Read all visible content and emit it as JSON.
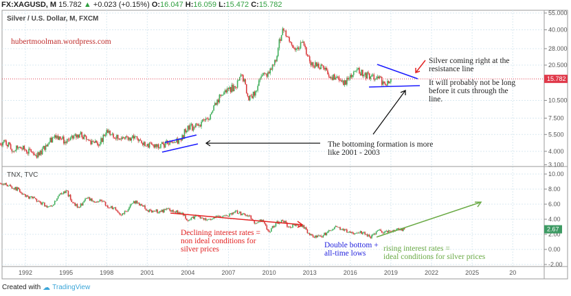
{
  "header": {
    "symbol": "FX:XAGUSD, M",
    "last": "15.782",
    "change": "+0.023 (+0.15%)",
    "o_label": "O:",
    "o": "16.047",
    "h_label": "H:",
    "h": "16.059",
    "l_label": "L:",
    "l": "15.472",
    "c_label": "C:",
    "c": "15.782"
  },
  "footer": {
    "created_with": "Created with",
    "brand": "TradingView"
  },
  "colors": {
    "up": "#3fae5a",
    "down": "#d9393b",
    "price_label": "#e0394a",
    "tnx_label": "#3d9a63",
    "annotation_blue": "#1a1aff",
    "annotation_red": "#e32222",
    "annotation_green": "#6aaa45"
  },
  "chart_data": [
    {
      "type": "candlestick",
      "title": "Silver / U.S. Dollar, M, FXCM",
      "scale": "log",
      "y_ticks": [
        "55.000",
        "40.000",
        "28.000",
        "20.500",
        "10.500",
        "7.500",
        "5.500",
        "4.000",
        "3.100"
      ],
      "y_tick_values": [
        55,
        40,
        28,
        20.5,
        10.5,
        7.5,
        5.5,
        4,
        3.1
      ],
      "last_price_label": "15.782",
      "last_price": 15.782,
      "x_start": 1990,
      "x_step": 0.5,
      "closes": [
        4.6,
        4.9,
        4.0,
        4.3,
        4.1,
        3.9,
        3.7,
        4.5,
        5.2,
        5.3,
        4.7,
        5.1,
        5.5,
        5.0,
        4.8,
        4.6,
        6.0,
        5.2,
        5.1,
        5.3,
        5.1,
        4.9,
        4.6,
        4.3,
        4.6,
        4.6,
        4.7,
        4.9,
        6.5,
        6.3,
        7.0,
        7.3,
        10.0,
        11.5,
        13.0,
        13.5,
        17.0,
        10.5,
        12.5,
        17.0,
        17.5,
        22.0,
        41.0,
        32.0,
        28.0,
        32.0,
        22.0,
        20.0,
        19.5,
        16.0,
        16.5,
        14.0,
        17.0,
        19.0,
        17.0,
        16.5,
        16.5,
        14.5,
        15.782
      ],
      "watermark": "hubertmoolman.wordpress.com",
      "annotations": {
        "resistance": [
          "Silver coming right at the",
          "resistance line"
        ],
        "cut": [
          "It will probably not be long",
          "before it cuts through the",
          "line."
        ],
        "bottoming": [
          "The bottoming formation is more",
          "like 2001 - 2003"
        ]
      }
    },
    {
      "type": "candlestick",
      "title": "TNX, TVC",
      "scale": "linear",
      "y_ticks": [
        "10.00",
        "8.00",
        "6.00",
        "4.00",
        "2.00",
        "0.00",
        "-2.00"
      ],
      "y_tick_values": [
        10,
        8,
        6,
        4,
        2,
        0,
        -2
      ],
      "last_price_label": "2.67",
      "last_price": 2.67,
      "x_start": 1990,
      "x_step": 0.5,
      "closes": [
        8.7,
        8.8,
        8.1,
        8.0,
        7.0,
        6.8,
        6.4,
        5.8,
        5.8,
        7.3,
        7.8,
        6.2,
        5.6,
        6.8,
        6.4,
        6.6,
        5.8,
        5.5,
        4.6,
        5.0,
        6.4,
        6.0,
        5.2,
        5.1,
        5.0,
        5.4,
        5.0,
        4.8,
        3.8,
        4.4,
        4.2,
        4.0,
        4.2,
        4.3,
        4.4,
        5.1,
        4.7,
        4.5,
        3.5,
        3.9,
        2.3,
        3.5,
        3.8,
        3.0,
        3.3,
        3.2,
        1.9,
        1.6,
        1.9,
        2.5,
        3.0,
        2.5,
        2.2,
        2.2,
        2.3,
        1.5,
        2.5,
        2.3,
        2.4,
        2.8,
        2.67
      ],
      "annotations": {
        "declining": [
          "Declining interest rates =",
          "non ideal conditions for",
          "silver prices"
        ],
        "double_bottom": [
          "Double bottom +",
          "all-time lows"
        ],
        "rising": [
          "rising interest rates =",
          "ideal conditions for silver prices"
        ]
      }
    }
  ],
  "time_axis": [
    "1992",
    "1995",
    "1998",
    "2001",
    "2004",
    "2007",
    "2010",
    "2013",
    "2016",
    "2019",
    "2022",
    "2025",
    "20"
  ]
}
